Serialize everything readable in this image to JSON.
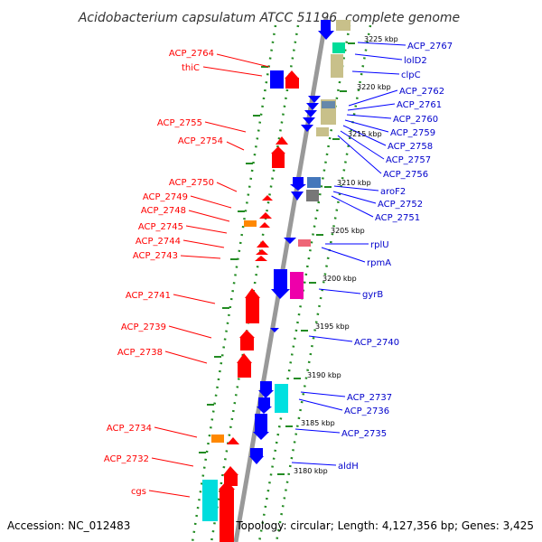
{
  "title": "Acidobacterium capsulatum ATCC 51196, complete genome",
  "accession": "Accession: NC_012483",
  "topology": "Topology: circular; Length: 4,127,356 bp; Genes: 3,425",
  "colors": {
    "forward_strand": "#ff0000",
    "reverse_strand": "#0000ff",
    "backbone": "#999999",
    "dots": "#228b22"
  },
  "left_labels": [
    "ACP_2764",
    "thiC",
    "ACP_2755",
    "ACP_2754",
    "ACP_2750",
    "ACP_2749",
    "ACP_2748",
    "ACP_2745",
    "ACP_2744",
    "ACP_2743",
    "ACP_2741",
    "ACP_2739",
    "ACP_2738",
    "ACP_2734",
    "ACP_2732",
    "cgs"
  ],
  "right_labels": [
    "ACP_2767",
    "lolD2",
    "clpC",
    "ACP_2762",
    "ACP_2761",
    "ACP_2760",
    "ACP_2759",
    "ACP_2758",
    "ACP_2757",
    "ACP_2756",
    "aroF2",
    "ACP_2752",
    "ACP_2751",
    "rplU",
    "rpmA",
    "gyrB",
    "ACP_2740",
    "ACP_2737",
    "ACP_2736",
    "ACP_2735",
    "aldH"
  ],
  "ticks": [
    "3225 kbp",
    "3220 kbp",
    "3215 kbp",
    "3210 kbp",
    "3205 kbp",
    "3200 kbp",
    "3195 kbp",
    "3190 kbp",
    "3185 kbp",
    "3180 kbp"
  ]
}
